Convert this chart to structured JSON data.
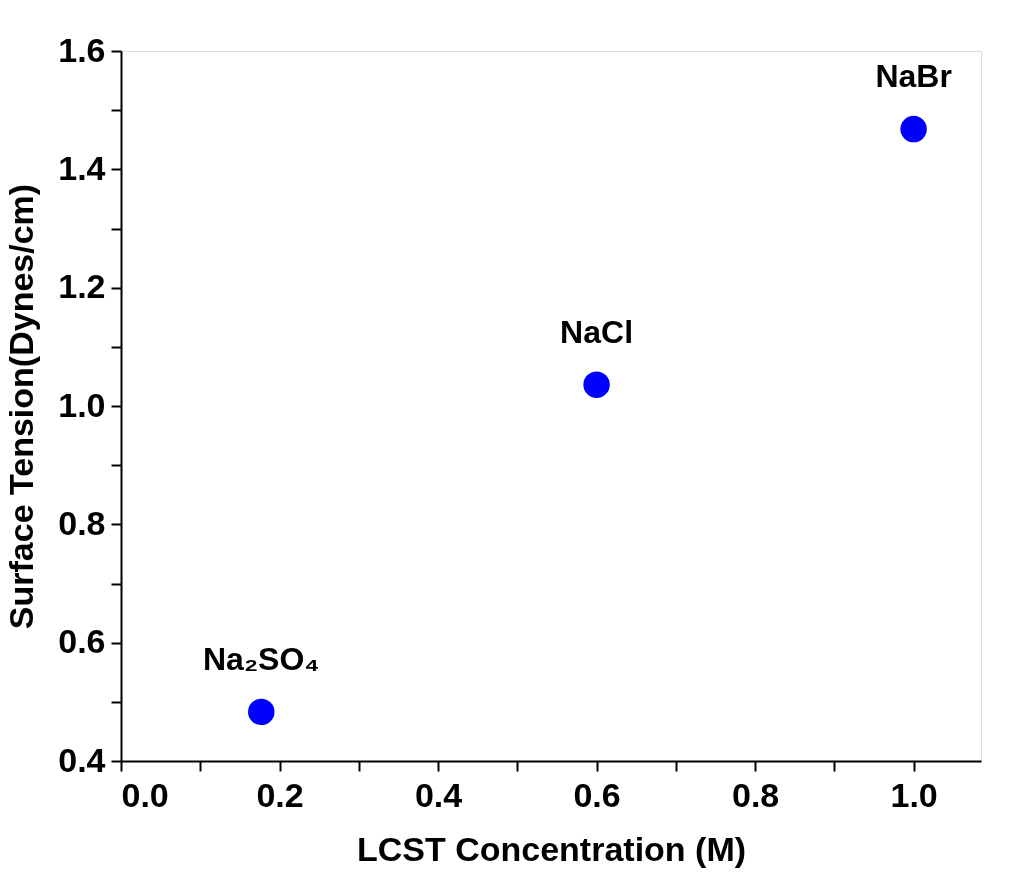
{
  "chart_data": {
    "type": "scatter",
    "xlabel": "LCST Concentration (M)",
    "ylabel": "Surface Tension(Dynes/cm)",
    "x": [
      0.177,
      0.6,
      1.0
    ],
    "series": [
      {
        "color": "#0000ff",
        "values": [
          0.483,
          1.036,
          1.468
        ]
      }
    ],
    "marker": "circle",
    "grid": false,
    "xlim": [
      0.0,
      1.085
    ],
    "ylim": [
      0.4,
      1.6
    ],
    "xticks": [
      {
        "value": 0,
        "label": "0.0"
      },
      {
        "value": 0.1,
        "label": null
      },
      {
        "value": 0.2,
        "label": "0.2"
      },
      {
        "value": 0.3,
        "label": null
      },
      {
        "value": 0.4,
        "label": "0.4"
      },
      {
        "value": 0.5,
        "label": null
      },
      {
        "value": 0.6,
        "label": "0.6"
      },
      {
        "value": 0.7,
        "label": null
      },
      {
        "value": 0.8,
        "label": "0.8"
      },
      {
        "value": 0.9,
        "label": null
      },
      {
        "value": 1.0,
        "label": "1.0"
      }
    ],
    "yticks": [
      {
        "value": 0.4,
        "label": "0.4"
      },
      {
        "value": 0.5,
        "label": null
      },
      {
        "value": 0.6,
        "label": "0.6"
      },
      {
        "value": 0.7,
        "label": null
      },
      {
        "value": 0.8,
        "label": "0.8"
      },
      {
        "value": 0.9,
        "label": null
      },
      {
        "value": 1.0,
        "label": "1.0"
      },
      {
        "value": 1.1,
        "label": null
      },
      {
        "value": 1.2,
        "label": "1.2"
      },
      {
        "value": 1.3,
        "label": null
      },
      {
        "value": 1.4,
        "label": "1.4"
      },
      {
        "value": 1.5,
        "label": null
      },
      {
        "value": 1.6,
        "label": "1.6"
      }
    ],
    "annotations": [
      {
        "text": "Na₂SO₄",
        "x": 0.177,
        "y": 0.483
      },
      {
        "text": "NaCl",
        "x": 0.6,
        "y": 1.036
      },
      {
        "text": "NaBr",
        "x": 1.0,
        "y": 1.468
      }
    ]
  }
}
